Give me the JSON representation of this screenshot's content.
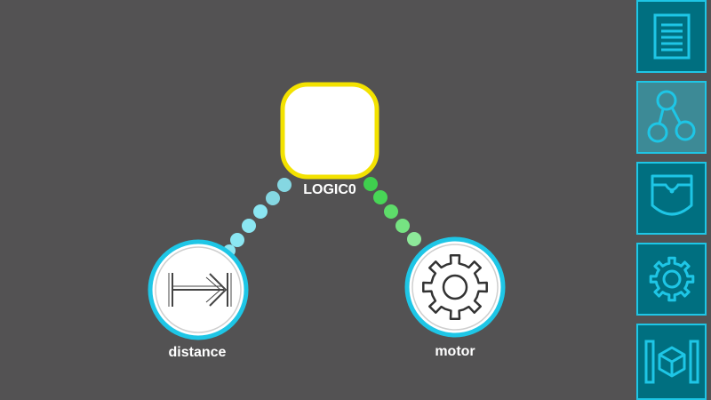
{
  "graph": {
    "logic_node": {
      "label": "LOGIC0",
      "border_color": "#f3e200"
    },
    "sensor_node": {
      "label": "distance",
      "icon": "distance-sensor-icon",
      "border_color": "#1ec6e6"
    },
    "actuator_node": {
      "label": "motor",
      "icon": "gear-icon",
      "border_color": "#1ec6e6"
    },
    "connection_colors": {
      "sensor_link": "#8be6f2",
      "actuator_link": "#5edc6a"
    }
  },
  "sidebar": {
    "accent": "#1ec6e6",
    "items": [
      {
        "name": "document",
        "icon": "document-icon"
      },
      {
        "name": "graph",
        "icon": "graph-nodes-icon",
        "active": true
      },
      {
        "name": "pocket",
        "icon": "pocket-icon"
      },
      {
        "name": "settings",
        "icon": "gear-icon"
      },
      {
        "name": "ar",
        "icon": "ar-cube-icon"
      }
    ]
  }
}
